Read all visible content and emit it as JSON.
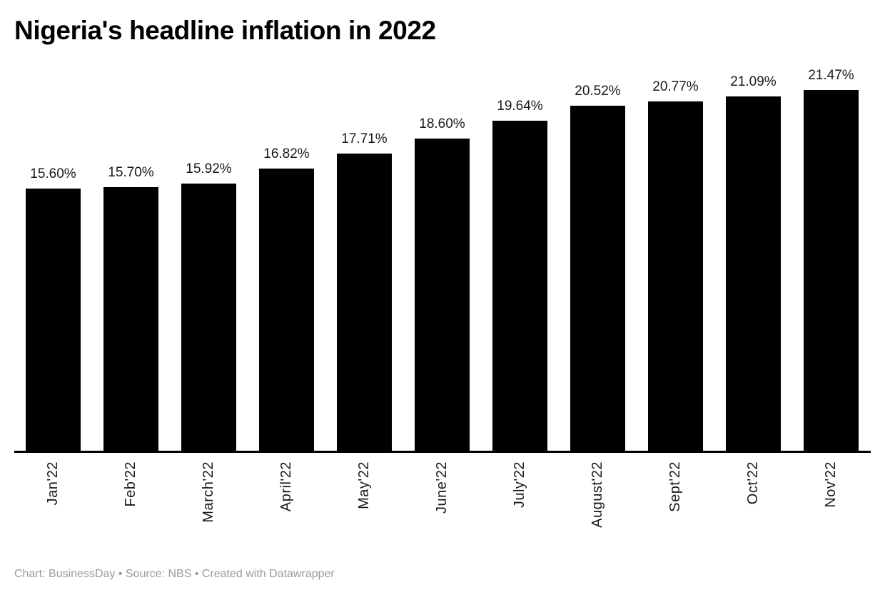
{
  "header": {
    "title": "Nigeria's headline inflation in 2022"
  },
  "footer": {
    "text": "Chart: BusinessDay • Source: NBS • Created with Datawrapper"
  },
  "colors": {
    "bar": "#000000",
    "axis": "#000000",
    "title": "#000000",
    "value_label": "#1a1a1a",
    "tick_label": "#1a1a1a",
    "footer_text": "#999999",
    "background": "#ffffff"
  },
  "chart_data": {
    "type": "bar",
    "title": "Nigeria's headline inflation in 2022",
    "categories": [
      "Jan'22",
      "Feb'22",
      "March'22",
      "April'22",
      "May'22",
      "June'22",
      "July'22",
      "August'22",
      "Sept'22",
      "Oct'22",
      "Nov'22"
    ],
    "values": [
      15.6,
      15.7,
      15.92,
      16.82,
      17.71,
      18.6,
      19.64,
      20.52,
      20.77,
      21.09,
      21.47
    ],
    "value_labels": [
      "15.60%",
      "15.70%",
      "15.92%",
      "16.82%",
      "17.71%",
      "18.60%",
      "19.64%",
      "20.52%",
      "20.77%",
      "21.09%",
      "21.47%"
    ],
    "xlabel": "",
    "ylabel": "",
    "ylim": [
      0,
      21.47
    ],
    "grid": false,
    "legend": false,
    "bar_color": "#000000",
    "value_label_position": "above-bar",
    "tick_label_rotation": -90
  }
}
